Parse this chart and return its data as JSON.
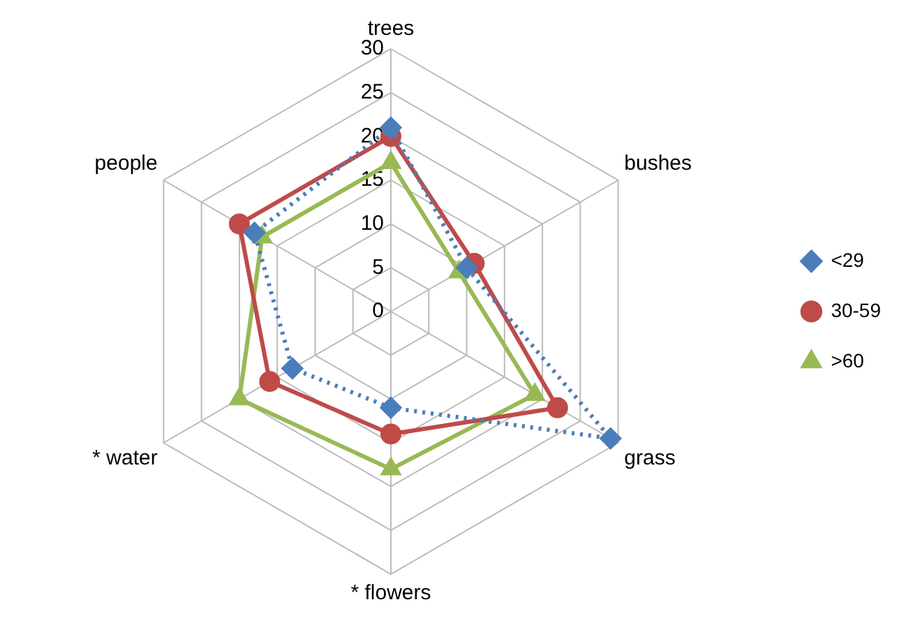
{
  "chart_data": {
    "type": "radar",
    "categories": [
      "trees",
      "bushes",
      "grass",
      "* flowers",
      "* water",
      "people"
    ],
    "series": [
      {
        "name": "<29",
        "color": "#4a7ebb",
        "values": [
          21,
          10,
          29,
          11,
          13,
          18
        ],
        "marker": "diamond",
        "line_style": "dotted"
      },
      {
        "name": "30-59",
        "color": "#be4b48",
        "values": [
          20,
          11,
          22,
          14,
          16,
          20
        ],
        "marker": "circle",
        "line_style": "solid"
      },
      {
        "name": ">60",
        "color": "#98b954",
        "values": [
          17,
          9,
          19,
          18,
          20,
          17
        ],
        "marker": "triangle",
        "line_style": "solid"
      }
    ],
    "ylim": [
      0,
      30
    ],
    "yticks": [
      0,
      5,
      10,
      15,
      20,
      25,
      30
    ],
    "grid": true,
    "legend": "right"
  }
}
